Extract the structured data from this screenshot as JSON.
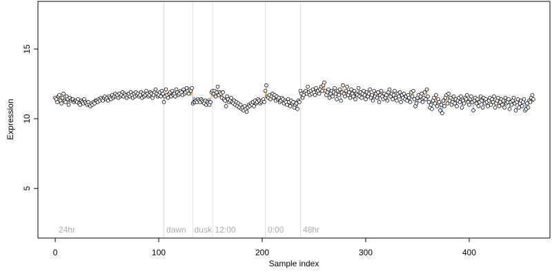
{
  "chart_data": {
    "type": "scatter",
    "xlabel": "Sample index",
    "ylabel": "Expression",
    "xlim": [
      -16.7,
      478
    ],
    "xticks": [
      0,
      100,
      200,
      300,
      400
    ],
    "ylim": [
      1.44,
      18.42
    ],
    "yticks": [
      5,
      10,
      15
    ],
    "point_color": "#ffffff",
    "edge_color": "#000000",
    "above_color": "#e8a650",
    "below_color": "#7fa7d9",
    "vlines": [
      105,
      133,
      152,
      203,
      237
    ],
    "vline_color": "#dddddd",
    "annotation_y": 2,
    "annotations": [
      {
        "label": "24hr",
        "x": 2
      },
      {
        "label": "dawn",
        "x": 106
      },
      {
        "label": "dusk",
        "x": 133
      },
      {
        "label": "12:00",
        "x": 153
      },
      {
        "label": "0:00",
        "x": 204
      },
      {
        "label": "48hr",
        "x": 238
      }
    ],
    "values": [
      11.5,
      11.4,
      11.2,
      11.6,
      11.7,
      11.3,
      11.1,
      11.5,
      11.8,
      11.3,
      11.2,
      11.6,
      11.4,
      11.0,
      11.5,
      11.3,
      11.4,
      11.4,
      11.2,
      11.3,
      11.3,
      11.2,
      11.4,
      11.1,
      11.0,
      11.3,
      11.2,
      11.1,
      11.4,
      11.2,
      11.1,
      11.0,
      11.2,
      11.0,
      10.9,
      11.1,
      11.0,
      11.2,
      11.1,
      11.3,
      11.3,
      11.2,
      11.4,
      11.3,
      11.5,
      11.4,
      11.3,
      11.5,
      11.6,
      11.4,
      11.5,
      11.3,
      11.6,
      11.5,
      11.4,
      11.7,
      11.5,
      11.6,
      11.8,
      11.6,
      11.7,
      11.5,
      11.8,
      11.6,
      11.7,
      11.9,
      11.6,
      11.8,
      11.7,
      11.5,
      11.7,
      11.8,
      11.6,
      11.9,
      11.7,
      11.5,
      11.8,
      11.6,
      11.9,
      11.7,
      11.8,
      11.6,
      11.7,
      11.9,
      11.5,
      11.8,
      11.6,
      11.7,
      12.0,
      11.8,
      11.6,
      11.7,
      11.9,
      11.8,
      11.5,
      11.7,
      11.9,
      12.1,
      11.8,
      11.6,
      11.7,
      11.9,
      11.6,
      12.0,
      11.8,
      11.2,
      11.6,
      12.1,
      11.7,
      11.5,
      11.8,
      11.9,
      11.6,
      12.0,
      11.7,
      11.8,
      11.6,
      12.1,
      11.9,
      11.7,
      11.8,
      12.0,
      11.9,
      11.7,
      12.1,
      11.8,
      11.9,
      12.2,
      12.0,
      11.8,
      12.1,
      12.0,
      12.2,
      11.1,
      11.2,
      11.2,
      11.3,
      11.2,
      11.4,
      11.3,
      11.2,
      11.4,
      11.3,
      11.2,
      11.1,
      11.3,
      11.0,
      11.2,
      11.1,
      11.0,
      11.2,
      11.9,
      12.0,
      11.8,
      12.0,
      11.6,
      11.9,
      12.3,
      11.7,
      11.9,
      11.8,
      11.5,
      11.9,
      11.4,
      11.3,
      10.9,
      11.6,
      11.4,
      11.2,
      11.3,
      11.5,
      11.2,
      11.1,
      11.3,
      11.0,
      11.2,
      10.9,
      11.1,
      10.8,
      11.0,
      10.7,
      10.8,
      10.6,
      10.9,
      10.7,
      10.5,
      10.8,
      11.0,
      10.9,
      11.1,
      11.0,
      11.2,
      10.9,
      11.3,
      11.1,
      11.2,
      11.4,
      11.3,
      11.1,
      11.2,
      11.3,
      11.4,
      11.2,
      12.0,
      12.4,
      11.6,
      11.5,
      11.7,
      11.4,
      11.6,
      11.8,
      11.5,
      11.7,
      11.3,
      11.6,
      11.4,
      11.5,
      11.2,
      11.3,
      11.5,
      11.4,
      11.1,
      11.3,
      11.2,
      11.0,
      11.4,
      11.2,
      10.9,
      11.3,
      11.1,
      11.2,
      10.8,
      11.0,
      11.1,
      10.7,
      11.3,
      11.2,
      12.0,
      11.8,
      11.5,
      11.7,
      11.9,
      12.0,
      11.8,
      12.3,
      11.9,
      11.7,
      12.0,
      11.8,
      12.1,
      11.9,
      11.7,
      12.2,
      11.9,
      12.0,
      11.8,
      12.1,
      12.3,
      12.0,
      12.4,
      12.6,
      12.0,
      11.7,
      11.9,
      12.1,
      11.5,
      11.8,
      12.0,
      11.6,
      11.9,
      12.2,
      11.8,
      11.4,
      12.0,
      11.7,
      12.1,
      11.3,
      11.9,
      12.4,
      11.8,
      11.6,
      12.0,
      12.3,
      11.7,
      11.9,
      11.5,
      12.1,
      11.8,
      11.6,
      12.0,
      11.4,
      11.8,
      11.7,
      12.2,
      11.6,
      11.9,
      11.5,
      11.8,
      12.0,
      11.7,
      11.4,
      11.9,
      11.6,
      11.8,
      12.1,
      11.5,
      11.7,
      11.3,
      12.0,
      11.6,
      11.8,
      11.5,
      11.9,
      11.2,
      11.7,
      12.0,
      11.6,
      11.4,
      11.8,
      11.5,
      11.7,
      11.3,
      11.9,
      12.1,
      11.6,
      11.8,
      11.4,
      11.7,
      12.0,
      11.5,
      11.3,
      11.8,
      11.6,
      11.9,
      11.2,
      11.7,
      11.5,
      11.8,
      11.4,
      11.6,
      11.3,
      11.7,
      11.5,
      11.2,
      11.9,
      11.6,
      12.0,
      11.4,
      10.9,
      11.1,
      11.5,
      11.7,
      11.3,
      11.6,
      11.8,
      11.2,
      11.5,
      11.9,
      11.4,
      12.1,
      11.6,
      11.2,
      10.8,
      11.0,
      10.7,
      11.3,
      11.5,
      11.1,
      11.7,
      10.9,
      11.4,
      11.2,
      10.6,
      11.0,
      10.4,
      11.3,
      10.9,
      11.5,
      11.7,
      11.1,
      11.8,
      11.3,
      11.5,
      11.0,
      11.2,
      11.6,
      11.1,
      11.4,
      10.9,
      11.3,
      11.5,
      11.2,
      11.6,
      10.8,
      11.3,
      11.1,
      11.5,
      11.4,
      11.7,
      11.2,
      11.0,
      11.4,
      11.6,
      11.2,
      10.6,
      11.3,
      11.5,
      11.1,
      11.4,
      10.9,
      11.2,
      11.6,
      11.3,
      10.8,
      11.5,
      11.1,
      11.4,
      11.2,
      10.9,
      11.3,
      11.5,
      11.0,
      11.4,
      11.2,
      11.6,
      10.8,
      11.1,
      11.3,
      11.5,
      10.9,
      11.2,
      11.4,
      11.0,
      11.3,
      10.8,
      11.5,
      11.1,
      11.2,
      11.4,
      10.7,
      11.2,
      11.0,
      11.3,
      11.5,
      11.1,
      10.6,
      11.2,
      11.4,
      10.8,
      11.1,
      11.3,
      10.9,
      11.2,
      11.4,
      10.6,
      10.7,
      11.1,
      10.8,
      11.3,
      11.2,
      11.5,
      11.7,
      11.4
    ]
  }
}
